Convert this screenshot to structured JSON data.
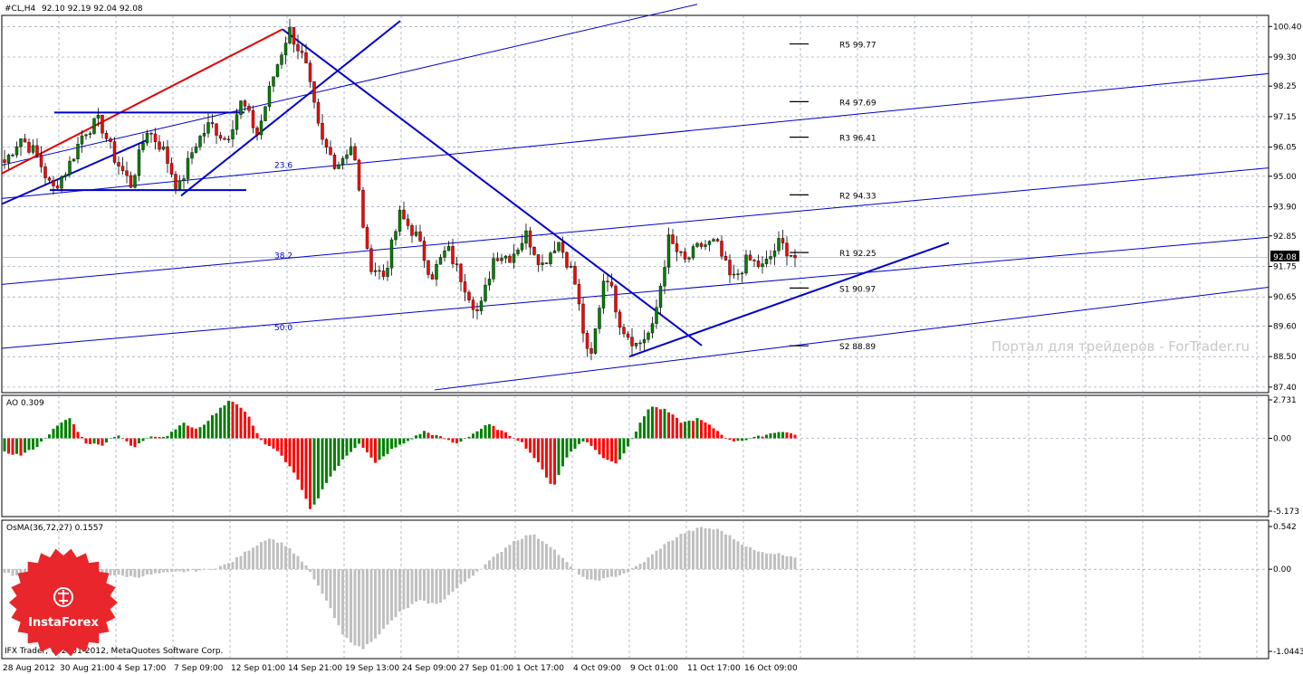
{
  "window": {
    "symbol_label": "#CL,H4",
    "ohlc": "92.10 92.19 92.04 92.08",
    "current_price": "92.08",
    "copyright": "IFX Trader, © 2001-2012, MetaQuotes Software Corp.",
    "watermark": "Портал для трейдеров - ForTrader.ru",
    "brand": "InstaForex"
  },
  "colors": {
    "bull": "#008000",
    "bear": "#ff0000",
    "trend_blue": "#0000cc",
    "trend_red": "#e00000",
    "grid": "#7f8fa8",
    "osma": "#c0c0c0"
  },
  "chart_data": [
    {
      "type": "candlestick",
      "title": "#CL,H4",
      "y_ticks": [
        "100.40",
        "99.30",
        "98.25",
        "97.15",
        "96.05",
        "95.00",
        "93.90",
        "92.85",
        "91.75",
        "90.65",
        "89.60",
        "88.50",
        "87.40"
      ],
      "ylim": [
        87.2,
        100.8
      ],
      "x_ticks": [
        "28 Aug 2012",
        "30 Aug 21:00",
        "4 Sep 17:00",
        "7 Sep 09:00",
        "12 Sep 01:00",
        "14 Sep 21:00",
        "19 Sep 13:00",
        "24 Sep 09:00",
        "27 Sep 01:00",
        "1 Oct 17:00",
        "4 Oct 09:00",
        "9 Oct 01:00",
        "11 Oct 17:00",
        "16 Oct 09:00"
      ],
      "pivots": [
        {
          "label": "R5 99.77",
          "value": 99.77
        },
        {
          "label": "R4 97.69",
          "value": 97.69
        },
        {
          "label": "R3 96.41",
          "value": 96.41
        },
        {
          "label": "R2 94.33",
          "value": 94.33
        },
        {
          "label": "R1 92.25",
          "value": 92.25
        },
        {
          "label": "S1 90.97",
          "value": 90.97
        },
        {
          "label": "S2 88.89",
          "value": 88.89
        }
      ],
      "fibo_labels": [
        {
          "label": "23.6",
          "value": 95.3
        },
        {
          "label": "38.2",
          "value": 92.05
        },
        {
          "label": "50.0",
          "value": 89.45
        }
      ],
      "anchors": [
        95.5,
        96.4,
        95.8,
        94.5,
        95.3,
        96.6,
        97.0,
        95.6,
        94.7,
        96.7,
        96.0,
        94.5,
        96.1,
        96.9,
        96.3,
        97.7,
        96.5,
        98.6,
        100.3,
        99.1,
        96.3,
        95.4,
        96.2,
        91.9,
        91.4,
        93.6,
        92.9,
        91.4,
        92.4,
        91.2,
        90.0,
        92.2,
        92.1,
        92.9,
        91.8,
        92.7,
        91.4,
        88.1,
        91.7,
        89.6,
        88.9,
        89.5,
        92.7,
        91.9,
        92.5,
        92.6,
        91.2,
        92.0,
        91.7,
        92.6,
        92.08
      ]
    },
    {
      "type": "bar",
      "title": "AO 0.309",
      "y_ticks": [
        "2.731",
        "0.00",
        "-5.173"
      ],
      "ylim": [
        -5.173,
        2.731
      ],
      "anchors": [
        -1.0,
        -1.2,
        -0.6,
        0.6,
        1.5,
        -0.3,
        -0.5,
        0.3,
        -0.7,
        0.2,
        0.1,
        1.1,
        0.6,
        1.7,
        2.8,
        1.8,
        -0.3,
        -1.0,
        -2.5,
        -5.2,
        -3.0,
        -1.5,
        -0.3,
        -1.8,
        -0.8,
        -0.2,
        0.5,
        0.1,
        -0.4,
        0.3,
        1.0,
        0.4,
        -0.2,
        -1.6,
        -3.5,
        -1.0,
        -0.1,
        -1.3,
        -1.8,
        0.2,
        2.3,
        2.0,
        1.1,
        1.4,
        0.7,
        -0.2,
        -0.1,
        0.2,
        0.5,
        0.3
      ]
    },
    {
      "type": "bar",
      "title": "OsMA(36,72,27) 0.1557",
      "y_ticks": [
        "0.542",
        "0.00",
        "-1.0443"
      ],
      "ylim": [
        -1.0443,
        0.542
      ],
      "anchors": [
        -0.05,
        -0.1,
        -0.08,
        -0.06,
        -0.05,
        -0.05,
        -0.08,
        -0.1,
        -0.06,
        -0.04,
        -0.02,
        0.0,
        0.08,
        0.25,
        0.4,
        0.3,
        0.05,
        -0.35,
        -0.85,
        -1.02,
        -0.8,
        -0.55,
        -0.4,
        -0.45,
        -0.25,
        -0.05,
        0.15,
        0.35,
        0.45,
        0.3,
        0.05,
        -0.15,
        -0.12,
        -0.05,
        0.1,
        0.3,
        0.45,
        0.53,
        0.5,
        0.35,
        0.22,
        0.2,
        0.16
      ]
    }
  ]
}
